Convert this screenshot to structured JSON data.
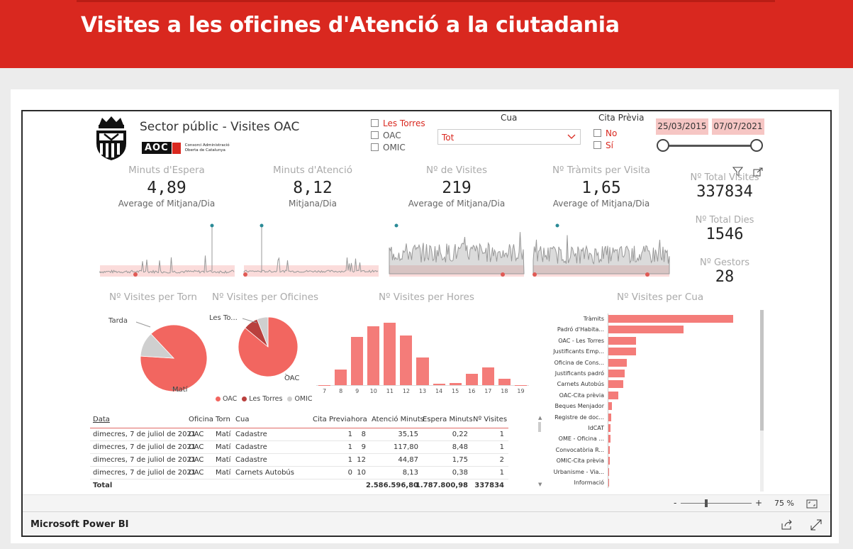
{
  "header": {
    "title": "Visites a les oficines d'Atenció a la ciutadania"
  },
  "report": {
    "title": "Sector públic - Visites OAC",
    "aoc_logo_text": "AOC",
    "aoc_logo_caption": "Consorci Administració Oberta de Catalunya"
  },
  "filters": {
    "offices": [
      "Les Torres",
      "OAC",
      "OMIC"
    ],
    "cua_label": "Cua",
    "cua_value": "Tot",
    "cita_label": "Cita Prèvia",
    "cita_options": [
      "No",
      "Sí"
    ],
    "date_from": "25/03/2015",
    "date_to": "07/07/2021"
  },
  "kpis": [
    {
      "title": "Minuts d'Espera",
      "value": "4,89",
      "sub": "Average of Mitjana/Dia"
    },
    {
      "title": "Minuts d'Atenció",
      "value": "8,12",
      "sub": "Mitjana/Dia"
    },
    {
      "title": "Nº de Visites",
      "value": "219",
      "sub": "Average of Mitjana/Dia"
    },
    {
      "title": "Nº Tràmits per Visita",
      "value": "1,65",
      "sub": "Average of Mitjana/Dia"
    }
  ],
  "totals": [
    {
      "title": "Nº Total Visites",
      "value": "337834"
    },
    {
      "title": "Nº Total Dies",
      "value": "1546"
    },
    {
      "title": "Nº Gestors",
      "value": "28"
    }
  ],
  "sections": {
    "torn": "Nº Visites per Torn",
    "oficines": "Nº Visites per Oficines",
    "hores": "Nº Visites per Hores",
    "cua": "Nº Visites per Cua"
  },
  "colors": {
    "accent": "#d9281f",
    "bar": "#f47c79",
    "pie_main": "#f26660",
    "pie_dark": "#b9403d",
    "pie_grey": "#cfcfcf"
  },
  "chart_data": [
    {
      "type": "pie",
      "title": "Nº Visites per Torn",
      "labels": [
        "Matí",
        "Tarda"
      ],
      "values": [
        88,
        12
      ]
    },
    {
      "type": "pie",
      "title": "Nº Visites per Oficines",
      "labels": [
        "OAC",
        "Les To...",
        "OMIC"
      ],
      "legend": [
        "OAC",
        "Les Torres",
        "OMIC"
      ],
      "values": [
        86,
        8,
        6
      ]
    },
    {
      "type": "bar",
      "title": "Nº Visites per Hores",
      "categories": [
        "7",
        "8",
        "9",
        "10",
        "11",
        "12",
        "13",
        "14",
        "15",
        "16",
        "17",
        "18",
        "19"
      ],
      "values": [
        0.5,
        23,
        70,
        86,
        91,
        72,
        40,
        2,
        3,
        17,
        26,
        9,
        0.5
      ]
    },
    {
      "type": "bar",
      "orientation": "horizontal",
      "title": "Nº Visites per Cua",
      "categories": [
        "Tràmits",
        "Padró d'Habita...",
        "OAC - Les Torres",
        "Justificants Emp...",
        "Oficina de Cons...",
        "Justificants padró",
        "Carnets Autobús",
        "OAC-Cita prèvia",
        "Beques Menjador",
        "Registre de doc...",
        "IdCAT",
        "OME - Oficina ...",
        "Convocatòria R...",
        "OMIC-Cita prèvia",
        "Urbanisme - Via...",
        "Informació"
      ],
      "values": [
        100,
        60,
        22,
        22,
        15,
        13,
        12,
        8,
        3,
        2,
        1.5,
        1.5,
        1,
        1,
        0.8,
        0.5
      ]
    }
  ],
  "table": {
    "columns": [
      "Data",
      "Oficina",
      "Torn",
      "Cua",
      "Cita Previa",
      "hora",
      "Atenció Minuts",
      "Espera Minuts",
      "Nº Visites"
    ],
    "rows": [
      [
        "dimecres, 7 de juliol de 2021",
        "OAC",
        "Matí",
        "Cadastre",
        "1",
        "8",
        "35,15",
        "0,22",
        "1"
      ],
      [
        "dimecres, 7 de juliol de 2021",
        "OAC",
        "Matí",
        "Cadastre",
        "1",
        "9",
        "117,80",
        "8,48",
        "1"
      ],
      [
        "dimecres, 7 de juliol de 2021",
        "OAC",
        "Matí",
        "Cadastre",
        "1",
        "12",
        "44,87",
        "1,75",
        "2"
      ],
      [
        "dimecres, 7 de juliol de 2021",
        "OAC",
        "Matí",
        "Carnets Autobús",
        "0",
        "10",
        "8,13",
        "0,38",
        "1"
      ]
    ],
    "total_label": "Total",
    "total_atencio": "2.586.596,80",
    "total_espera": "1.787.800,98",
    "total_visites": "337834"
  },
  "zoom": {
    "minus": "-",
    "plus": "+",
    "level": "75 %"
  },
  "footer": {
    "brand": "Microsoft Power BI"
  }
}
